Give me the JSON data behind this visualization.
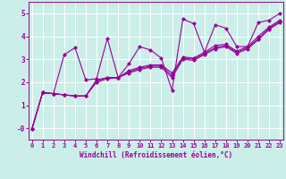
{
  "xlabel": "Windchill (Refroidissement éolien,°C)",
  "bg_color": "#cceee8",
  "line_color": "#990099",
  "grid_color": "#aaddcc",
  "xlim": [
    -0.3,
    23.3
  ],
  "ylim": [
    -0.5,
    5.5
  ],
  "ytick_vals": [
    0,
    1,
    2,
    3,
    4,
    5
  ],
  "ytick_labels": [
    "-0",
    "1",
    "2",
    "3",
    "4",
    "5"
  ],
  "xticks": [
    0,
    1,
    2,
    3,
    4,
    5,
    6,
    7,
    8,
    9,
    10,
    11,
    12,
    13,
    14,
    15,
    16,
    17,
    18,
    19,
    20,
    21,
    22,
    23
  ],
  "lines": [
    {
      "x": [
        0,
        1,
        2,
        3,
        4,
        5,
        6,
        7,
        8,
        9,
        10,
        11,
        12,
        13,
        14,
        15,
        16,
        17,
        18,
        19,
        20,
        21,
        22,
        23
      ],
      "y": [
        -0.05,
        1.55,
        1.5,
        3.2,
        3.5,
        2.1,
        2.15,
        3.9,
        2.2,
        2.8,
        3.55,
        3.4,
        3.05,
        1.65,
        4.75,
        4.55,
        3.3,
        4.5,
        4.35,
        3.55,
        3.55,
        4.6,
        4.7,
        5.0
      ]
    },
    {
      "x": [
        0,
        1,
        2,
        3,
        4,
        5,
        6,
        7,
        8,
        9,
        10,
        11,
        12,
        13,
        14,
        15,
        16,
        17,
        18,
        19,
        20,
        21,
        22,
        23
      ],
      "y": [
        -0.05,
        1.55,
        1.5,
        1.45,
        1.4,
        1.4,
        2.1,
        2.2,
        2.2,
        2.5,
        2.65,
        2.75,
        2.75,
        2.4,
        3.1,
        3.05,
        3.3,
        3.6,
        3.65,
        3.35,
        3.55,
        4.0,
        4.4,
        4.7
      ]
    },
    {
      "x": [
        0,
        1,
        2,
        3,
        4,
        5,
        6,
        7,
        8,
        9,
        10,
        11,
        12,
        13,
        14,
        15,
        16,
        17,
        18,
        19,
        20,
        21,
        22,
        23
      ],
      "y": [
        -0.05,
        1.55,
        1.5,
        1.45,
        1.4,
        1.4,
        2.05,
        2.2,
        2.2,
        2.45,
        2.6,
        2.7,
        2.7,
        2.3,
        3.05,
        3.0,
        3.25,
        3.5,
        3.6,
        3.3,
        3.5,
        3.9,
        4.35,
        4.65
      ]
    },
    {
      "x": [
        0,
        1,
        2,
        3,
        4,
        5,
        6,
        7,
        8,
        9,
        10,
        11,
        12,
        13,
        14,
        15,
        16,
        17,
        18,
        19,
        20,
        21,
        22,
        23
      ],
      "y": [
        -0.05,
        1.55,
        1.5,
        1.45,
        1.4,
        1.4,
        2.0,
        2.15,
        2.2,
        2.4,
        2.55,
        2.65,
        2.65,
        2.2,
        3.0,
        2.95,
        3.2,
        3.45,
        3.55,
        3.25,
        3.45,
        3.85,
        4.3,
        4.6
      ]
    }
  ],
  "marker": "D",
  "markersize": 2.0,
  "linewidth": 0.8,
  "tick_fontsize": 5.0,
  "xlabel_fontsize": 5.5
}
